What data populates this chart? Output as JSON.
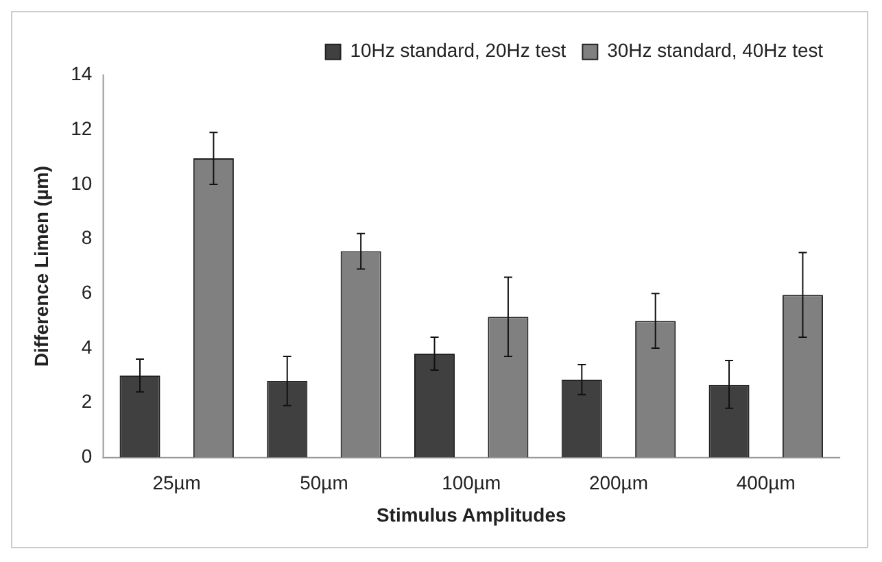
{
  "chart_data": {
    "type": "bar",
    "xlabel": "Stimulus Amplitudes",
    "ylabel": "Difference Limen (µm)",
    "categories": [
      "25µm",
      "50µm",
      "100µm",
      "200µm",
      "400µm"
    ],
    "series": [
      {
        "name": "10Hz standard, 20Hz test",
        "color": "#404040",
        "values": [
          3.0,
          2.8,
          3.8,
          2.85,
          2.65
        ],
        "errors": [
          [
            2.4,
            3.6
          ],
          [
            1.9,
            3.7
          ],
          [
            3.2,
            4.4
          ],
          [
            2.3,
            3.4
          ],
          [
            1.8,
            3.55
          ]
        ]
      },
      {
        "name": "30Hz standard, 40Hz test",
        "color": "#808080",
        "values": [
          10.95,
          7.55,
          5.15,
          5.0,
          5.95
        ],
        "errors": [
          [
            10.0,
            11.9
          ],
          [
            6.9,
            8.2
          ],
          [
            3.7,
            6.6
          ],
          [
            4.0,
            6.0
          ],
          [
            4.4,
            7.5
          ]
        ]
      }
    ],
    "ylim": [
      0,
      14
    ],
    "yticks": [
      0,
      2,
      4,
      6,
      8,
      10,
      12,
      14
    ],
    "grid": false,
    "legend": "top right"
  }
}
